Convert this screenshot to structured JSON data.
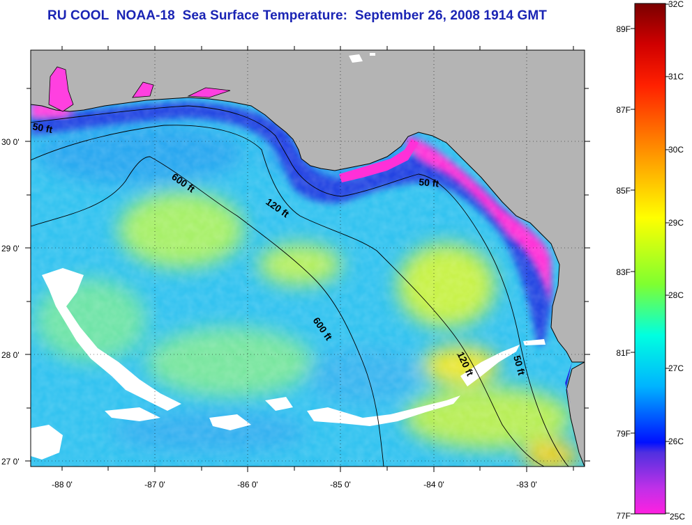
{
  "title": "RU COOL  NOAA-18  Sea Surface Temperature:  September 26, 2008 1914 GMT",
  "map": {
    "lon_ticks": [
      "-88 0'",
      "-87 0'",
      "-86 0'",
      "-85 0'",
      "-84 0'",
      "-83 0'"
    ],
    "lat_ticks": [
      "30 0'",
      "29 0'",
      "28 0'",
      "27 0'"
    ],
    "contour_labels": [
      "50 ft",
      "50 ft",
      "50 ft",
      "120 ft",
      "120 ft",
      "600 ft",
      "600 ft"
    ],
    "colors": {
      "land": "#b4b4b4",
      "cloud": "#ffffff",
      "border": "#000000"
    }
  },
  "colorbar": {
    "celsius": [
      "32C",
      "31C",
      "30C",
      "29C",
      "28C",
      "27C",
      "26C",
      "25C"
    ],
    "fahrenheit": [
      "89F",
      "87F",
      "85F",
      "83F",
      "81F",
      "79F",
      "77F"
    ],
    "gradient": [
      "#7a0000",
      "#ff0000",
      "#ff8c00",
      "#ffff00",
      "#7fff00",
      "#00ffcc",
      "#00a0ff",
      "#0000ff",
      "#8040e0",
      "#ff20e0"
    ]
  }
}
